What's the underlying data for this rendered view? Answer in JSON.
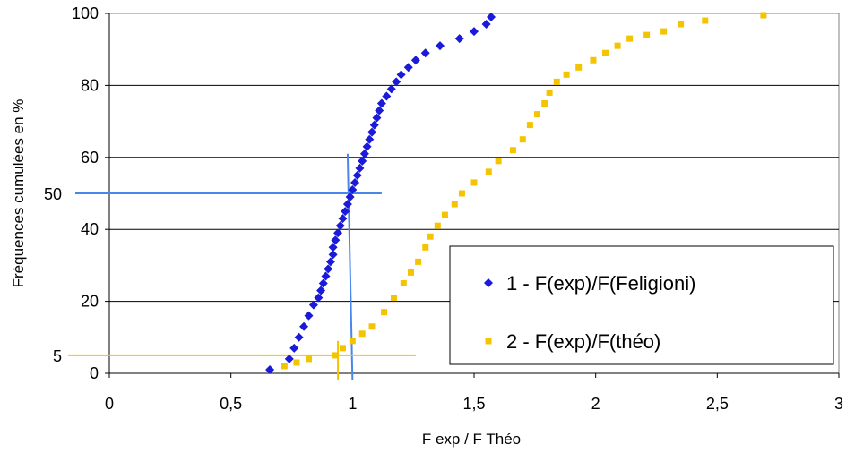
{
  "chart_data": {
    "type": "scatter",
    "title": "",
    "xlabel": "F exp / F Théo",
    "ylabel": "Fréquences cumulées en %",
    "xlim": [
      0,
      3
    ],
    "ylim": [
      0,
      100
    ],
    "x_ticks": [
      "0",
      "0,5",
      "1",
      "1,5",
      "2",
      "2,5",
      "3"
    ],
    "y_ticks": [
      "0",
      "20",
      "40",
      "60",
      "80",
      "100"
    ],
    "y_extra_ticks": [
      "5",
      "50"
    ],
    "grid": "horizontal",
    "legend": "bottom-right",
    "colors": {
      "series1": "#1a1ad8",
      "series2": "#f5c400",
      "ref1": "#4a86e8",
      "ref2": "#f5c400"
    },
    "series": [
      {
        "name": "1 - F(exp)/F(Feligioni)",
        "marker": "diamond",
        "x": [
          0.66,
          0.74,
          0.76,
          0.78,
          0.8,
          0.82,
          0.84,
          0.86,
          0.87,
          0.88,
          0.89,
          0.9,
          0.91,
          0.92,
          0.92,
          0.93,
          0.94,
          0.95,
          0.96,
          0.97,
          0.98,
          0.99,
          1.0,
          1.01,
          1.02,
          1.03,
          1.04,
          1.05,
          1.06,
          1.07,
          1.08,
          1.09,
          1.1,
          1.11,
          1.12,
          1.14,
          1.16,
          1.18,
          1.2,
          1.23,
          1.26,
          1.3,
          1.36,
          1.44,
          1.5,
          1.55,
          1.57
        ],
        "y": [
          1,
          4,
          7,
          10,
          13,
          16,
          19,
          21,
          23,
          25,
          27,
          29,
          31,
          33,
          35,
          37,
          39,
          41,
          43,
          45,
          47,
          49,
          51,
          53,
          55,
          57,
          59,
          61,
          63,
          65,
          67,
          69,
          71,
          73,
          75,
          77,
          79,
          81,
          83,
          85,
          87,
          89,
          91,
          93,
          95,
          97,
          99
        ]
      },
      {
        "name": "2 - F(exp)/F(théo)",
        "marker": "square",
        "x": [
          0.72,
          0.77,
          0.82,
          0.93,
          0.96,
          1.0,
          1.04,
          1.08,
          1.13,
          1.17,
          1.21,
          1.24,
          1.27,
          1.3,
          1.32,
          1.35,
          1.38,
          1.42,
          1.45,
          1.5,
          1.56,
          1.6,
          1.66,
          1.7,
          1.73,
          1.76,
          1.79,
          1.81,
          1.84,
          1.88,
          1.93,
          1.99,
          2.04,
          2.09,
          2.14,
          2.21,
          2.28,
          2.35,
          2.45,
          2.69
        ],
        "y": [
          2,
          3,
          4,
          5,
          7,
          9,
          11,
          13,
          17,
          21,
          25,
          28,
          31,
          35,
          38,
          41,
          44,
          47,
          50,
          53,
          56,
          59,
          62,
          65,
          69,
          72,
          75,
          78,
          81,
          83,
          85,
          87,
          89,
          91,
          93,
          94,
          95,
          97,
          98,
          99.5
        ]
      }
    ],
    "reference_lines": [
      {
        "series": 1,
        "y": 50,
        "x": 1.0
      },
      {
        "series": 2,
        "y": 5,
        "x": 0.94
      }
    ]
  }
}
